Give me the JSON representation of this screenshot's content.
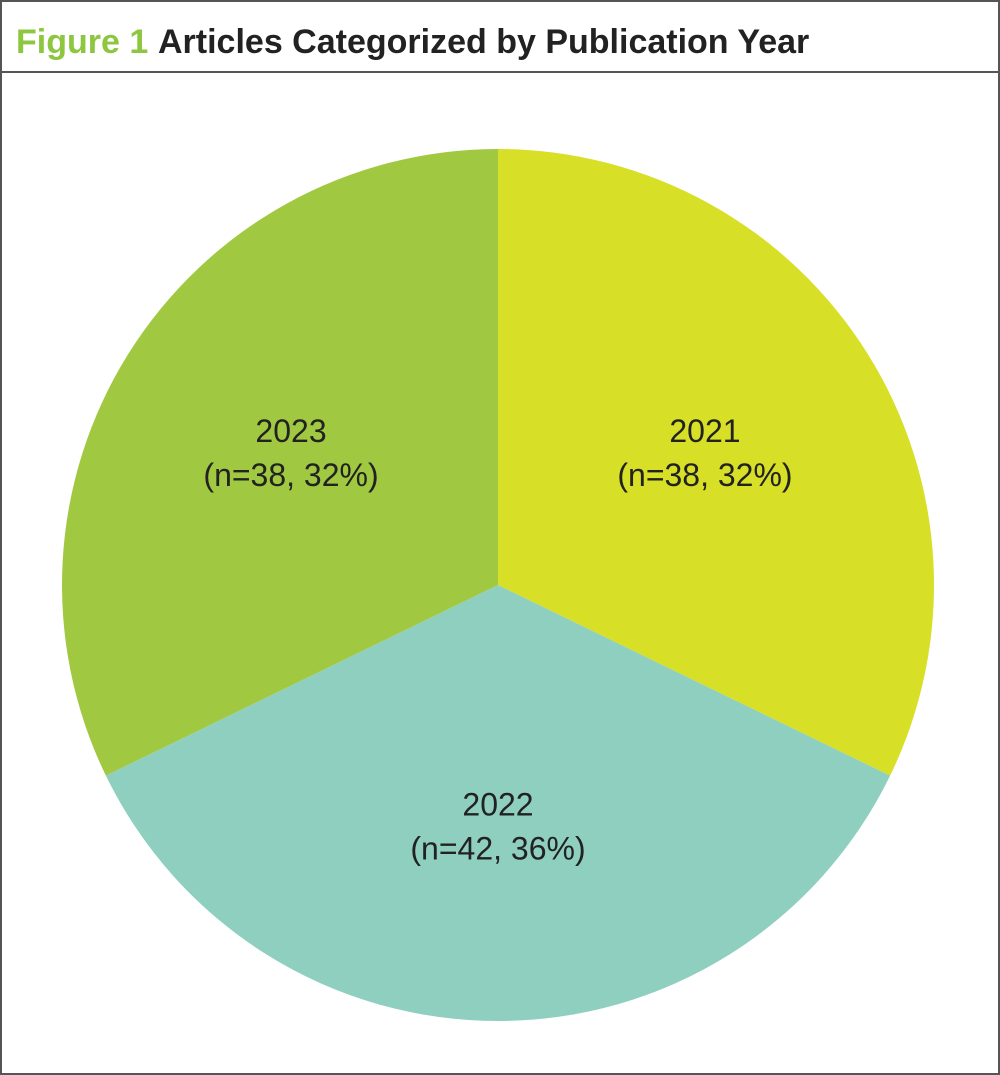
{
  "chart_data": {
    "type": "pie",
    "figure_label": "Figure 1",
    "title": "Articles Categorized by Publication Year",
    "categories": [
      "2021",
      "2022",
      "2023"
    ],
    "values": [
      38,
      42,
      38
    ],
    "value_labels": [
      "(n=38, 32%)",
      "(n=42, 36%)",
      "(n=38, 32%)"
    ],
    "colors": [
      "#d7df27",
      "#8ecfbf",
      "#a0c941"
    ],
    "title_color": "#8dc63f"
  }
}
